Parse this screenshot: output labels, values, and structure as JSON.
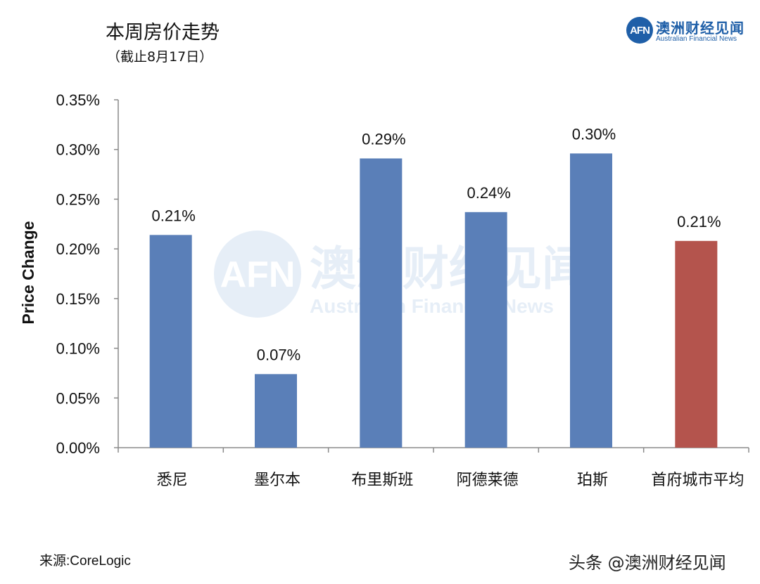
{
  "header": {
    "title": "本周房价走势",
    "subtitle": "（截止8月17日）"
  },
  "logo": {
    "mark": "AFN",
    "name_cn": "澳洲财经见闻",
    "name_en": "Australian Financial News",
    "color": "#1f5fa8"
  },
  "watermark": {
    "mark": "AFN",
    "name_cn": "澳洲财经见闻",
    "name_en": "Australian Financial News"
  },
  "chart_data": {
    "type": "bar",
    "title": "本周房价走势",
    "subtitle": "（截止8月17日）",
    "ylabel": "Price Change",
    "xlabel": "",
    "ylim": [
      0,
      0.35
    ],
    "yticks": [
      0,
      0.05,
      0.1,
      0.15,
      0.2,
      0.25,
      0.3,
      0.35
    ],
    "ytick_labels": [
      "0.00%",
      "0.05%",
      "0.10%",
      "0.15%",
      "0.20%",
      "0.25%",
      "0.30%",
      "0.35%"
    ],
    "categories": [
      "悉尼",
      "墨尔本",
      "布里斯班",
      "阿德莱德",
      "珀斯",
      "首府城市平均"
    ],
    "values": [
      0.214,
      0.074,
      0.291,
      0.237,
      0.296,
      0.208
    ],
    "data_labels": [
      "0.21%",
      "0.07%",
      "0.29%",
      "0.24%",
      "0.30%",
      "0.21%"
    ],
    "colors": [
      "#5a7fb8",
      "#5a7fb8",
      "#5a7fb8",
      "#5a7fb8",
      "#5a7fb8",
      "#b4544d"
    ],
    "grid": false,
    "legend": "none"
  },
  "footer": {
    "source": "来源:CoreLogic",
    "credit": "头条 @澳洲财经见闻"
  }
}
